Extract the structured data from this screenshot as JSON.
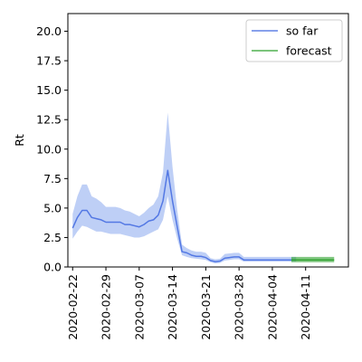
{
  "chart_data": {
    "type": "line",
    "title": "",
    "xlabel": "",
    "ylabel": "Rt",
    "xlim": [
      "2020-02-21",
      "2020-04-20"
    ],
    "ylim": [
      0,
      21.5
    ],
    "yticks": [
      0.0,
      2.5,
      5.0,
      7.5,
      10.0,
      12.5,
      15.0,
      17.5,
      20.0
    ],
    "ytick_labels": [
      "0.0",
      "2.5",
      "5.0",
      "7.5",
      "10.0",
      "12.5",
      "15.0",
      "17.5",
      "20.0"
    ],
    "xticks": [
      "2020-02-22",
      "2020-02-29",
      "2020-03-07",
      "2020-03-14",
      "2020-03-21",
      "2020-03-28",
      "2020-04-04",
      "2020-04-11"
    ],
    "grid": false,
    "legend_position": "top-right",
    "series": [
      {
        "name": "so far",
        "color": "#4169e1",
        "band_color": "#7da0ee",
        "x": [
          "2020-02-22",
          "2020-02-23",
          "2020-02-24",
          "2020-02-25",
          "2020-02-26",
          "2020-02-27",
          "2020-02-28",
          "2020-02-29",
          "2020-03-01",
          "2020-03-02",
          "2020-03-03",
          "2020-03-04",
          "2020-03-05",
          "2020-03-06",
          "2020-03-07",
          "2020-03-08",
          "2020-03-09",
          "2020-03-10",
          "2020-03-11",
          "2020-03-12",
          "2020-03-13",
          "2020-03-14",
          "2020-03-15",
          "2020-03-16",
          "2020-03-17",
          "2020-03-18",
          "2020-03-19",
          "2020-03-20",
          "2020-03-21",
          "2020-03-22",
          "2020-03-23",
          "2020-03-24",
          "2020-03-25",
          "2020-03-26",
          "2020-03-27",
          "2020-03-28",
          "2020-03-29",
          "2020-03-30",
          "2020-03-31",
          "2020-04-01",
          "2020-04-02",
          "2020-04-03",
          "2020-04-04",
          "2020-04-05",
          "2020-04-06",
          "2020-04-07",
          "2020-04-08",
          "2020-04-09"
        ],
        "values": [
          3.3,
          4.2,
          4.8,
          4.8,
          4.2,
          4.1,
          4.0,
          3.8,
          3.8,
          3.8,
          3.8,
          3.6,
          3.6,
          3.5,
          3.4,
          3.6,
          3.9,
          4.0,
          4.4,
          5.6,
          8.2,
          5.6,
          3.4,
          1.3,
          1.2,
          1.0,
          0.9,
          0.9,
          0.8,
          0.55,
          0.45,
          0.5,
          0.75,
          0.8,
          0.85,
          0.85,
          0.6,
          0.6,
          0.6,
          0.6,
          0.6,
          0.6,
          0.6,
          0.6,
          0.6,
          0.6,
          0.6,
          0.6
        ],
        "lower": [
          2.4,
          3.0,
          3.5,
          3.4,
          3.2,
          3.0,
          3.0,
          2.9,
          2.8,
          2.8,
          2.8,
          2.7,
          2.6,
          2.5,
          2.5,
          2.6,
          2.8,
          3.0,
          3.2,
          4.0,
          6.0,
          4.0,
          2.4,
          1.0,
          0.85,
          0.75,
          0.7,
          0.65,
          0.6,
          0.4,
          0.3,
          0.35,
          0.55,
          0.6,
          0.65,
          0.65,
          0.45,
          0.45,
          0.45,
          0.45,
          0.45,
          0.45,
          0.45,
          0.45,
          0.45,
          0.45,
          0.45,
          0.45
        ],
        "upper": [
          4.5,
          6.0,
          7.0,
          7.0,
          6.0,
          5.8,
          5.5,
          5.1,
          5.1,
          5.1,
          5.0,
          4.8,
          4.7,
          4.5,
          4.3,
          4.6,
          5.0,
          5.3,
          6.0,
          8.0,
          13.1,
          8.5,
          4.8,
          1.9,
          1.6,
          1.4,
          1.3,
          1.3,
          1.2,
          0.75,
          0.65,
          0.7,
          1.1,
          1.15,
          1.2,
          1.2,
          0.85,
          0.85,
          0.85,
          0.85,
          0.85,
          0.85,
          0.85,
          0.85,
          0.85,
          0.85,
          0.85,
          0.85
        ]
      },
      {
        "name": "forecast",
        "color": "#2ca02c",
        "band_color": "#2ca02c",
        "x": [
          "2020-04-08",
          "2020-04-09",
          "2020-04-10",
          "2020-04-11",
          "2020-04-12",
          "2020-04-13",
          "2020-04-14",
          "2020-04-15",
          "2020-04-16",
          "2020-04-17"
        ],
        "values": [
          0.6,
          0.6,
          0.6,
          0.6,
          0.6,
          0.6,
          0.6,
          0.6,
          0.6,
          0.6
        ],
        "lower": [
          0.4,
          0.4,
          0.4,
          0.4,
          0.4,
          0.4,
          0.4,
          0.4,
          0.4,
          0.4
        ],
        "upper": [
          0.85,
          0.85,
          0.85,
          0.85,
          0.85,
          0.85,
          0.85,
          0.85,
          0.85,
          0.85
        ]
      }
    ]
  }
}
